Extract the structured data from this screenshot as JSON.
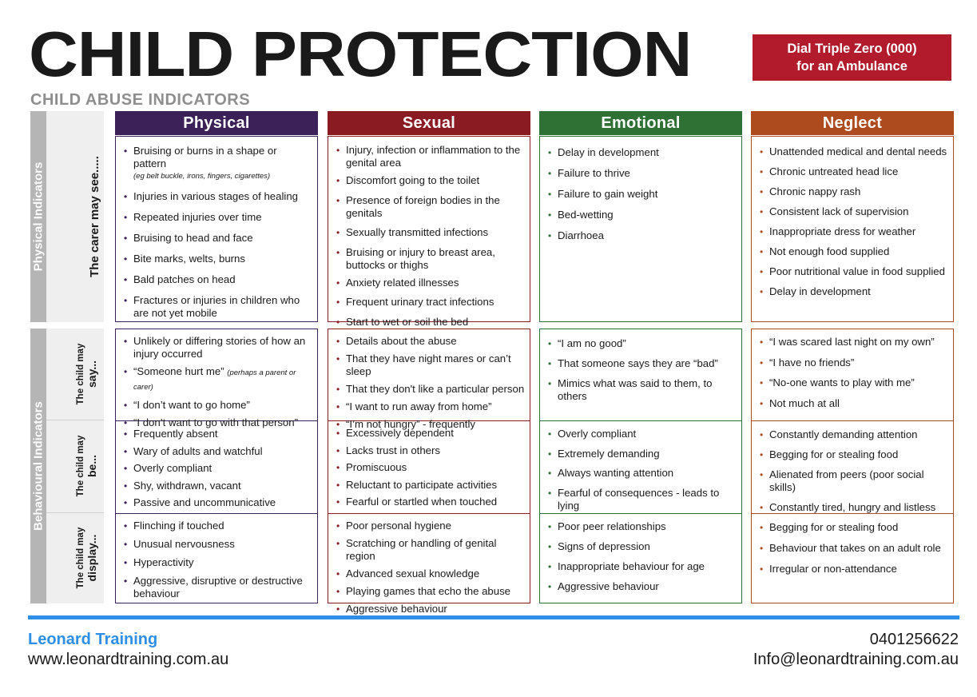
{
  "header": {
    "title": "CHILD PROTECTION",
    "subtitle": "CHILD ABUSE INDICATORS",
    "emergency_line1": "Dial Triple Zero (000)",
    "emergency_line2": "for an Ambulance"
  },
  "sidebar": {
    "physical_group": "Physical Indicators",
    "physical_sub": "The carer may see.....",
    "behavioural_group": "Behavioural Indicators",
    "say_line1": "The child may",
    "say_line2": "say...",
    "be_line1": "The child may",
    "be_line2": "be...",
    "display_line1": "The child may",
    "display_line2": "display..."
  },
  "columns": [
    {
      "heading": "Physical",
      "color": "#3b2157",
      "physical": [
        {
          "text": "Bruising or burns in a shape or pattern",
          "note": "(eg belt buckle, irons, fingers, cigarettes)"
        },
        {
          "text": "Injuries in various stages of healing"
        },
        {
          "text": "Repeated injuries over time"
        },
        {
          "text": "Bruising to head and face"
        },
        {
          "text": "Bite marks, welts, burns"
        },
        {
          "text": "Bald patches on head"
        },
        {
          "text": "Fractures or injuries in children who are not yet mobile"
        }
      ],
      "say": [
        {
          "text": "Unlikely or differing stories of how an injury occurred"
        },
        {
          "text": "“Someone hurt me”",
          "note": "(perhaps a parent or carer)"
        },
        {
          "text": "“I don’t want to go home”"
        },
        {
          "text": "“I don’t want to go with that person”"
        }
      ],
      "be": [
        {
          "text": "Frequently absent"
        },
        {
          "text": "Wary of adults and watchful"
        },
        {
          "text": "Overly compliant"
        },
        {
          "text": "Shy, withdrawn, vacant"
        },
        {
          "text": "Passive and uncommunicative"
        }
      ],
      "display": [
        {
          "text": "Flinching if touched"
        },
        {
          "text": "Unusual nervousness"
        },
        {
          "text": "Hyperactivity"
        },
        {
          "text": "Aggressive,  disruptive or destructive behaviour"
        }
      ]
    },
    {
      "heading": "Sexual",
      "color": "#8b1b22",
      "physical": [
        {
          "text": "Injury, infection or inflammation to the genital area"
        },
        {
          "text": "Discomfort going to the toilet"
        },
        {
          "text": "Presence of foreign bodies in the genitals"
        },
        {
          "text": "Sexually transmitted infections"
        },
        {
          "text": "Bruising or injury to breast area, buttocks  or thighs"
        },
        {
          "text": "Anxiety related illnesses"
        },
        {
          "text": "Frequent urinary tract infections"
        },
        {
          "text": "Start to wet or soil the bed"
        }
      ],
      "say": [
        {
          "text": "Details about the abuse"
        },
        {
          "text": "That they have night mares or can’t sleep"
        },
        {
          "text": "That they don't like a particular person"
        },
        {
          "text": "“I want to run away from home”"
        },
        {
          "text": "“I’m not hungry” - frequently"
        }
      ],
      "be": [
        {
          "text": "Excessively dependent"
        },
        {
          "text": "Lacks trust in others"
        },
        {
          "text": "Promiscuous"
        },
        {
          "text": "Reluctant to participate activities"
        },
        {
          "text": "Fearful or startled when touched"
        }
      ],
      "display": [
        {
          "text": "Poor personal hygiene"
        },
        {
          "text": "Scratching or handling of genital region"
        },
        {
          "text": "Advanced sexual knowledge"
        },
        {
          "text": "Playing games that echo the abuse"
        },
        {
          "text": "Aggressive behaviour"
        }
      ]
    },
    {
      "heading": "Emotional",
      "color": "#2f7034",
      "physical": [
        {
          "text": "Delay in development"
        },
        {
          "text": "Failure to thrive"
        },
        {
          "text": "Failure to gain weight"
        },
        {
          "text": "Bed-wetting"
        },
        {
          "text": "Diarrhoea"
        }
      ],
      "say": [
        {
          "text": "“I am no good”"
        },
        {
          "text": " That someone says they are “bad”"
        },
        {
          "text": " Mimics what was said to them, to others"
        }
      ],
      "be": [
        {
          "text": "Overly compliant"
        },
        {
          "text": "Extremely demanding"
        },
        {
          "text": "Always wanting attention"
        },
        {
          "text": "Fearful of consequences - leads to lying"
        }
      ],
      "display": [
        {
          "text": "Poor peer relationships"
        },
        {
          "text": "Signs of depression"
        },
        {
          "text": "Inappropriate behaviour for age"
        },
        {
          "text": "Aggressive behaviour"
        }
      ]
    },
    {
      "heading": "Neglect",
      "color": "#ae4b1e",
      "physical": [
        {
          "text": "Unattended medical and dental needs"
        },
        {
          "text": "Chronic untreated head lice"
        },
        {
          "text": "Chronic nappy rash"
        },
        {
          "text": "Consistent lack of supervision"
        },
        {
          "text": "Inappropriate dress for weather"
        },
        {
          "text": "Not enough food supplied"
        },
        {
          "text": "Poor nutritional value in food supplied"
        },
        {
          "text": "Delay in development"
        }
      ],
      "say": [
        {
          "text": "“I was scared last night on my own”"
        },
        {
          "text": "“I have no friends”"
        },
        {
          "text": "“No-one wants to play with me”"
        },
        {
          "text": " Not much at all"
        }
      ],
      "be": [
        {
          "text": "Constantly demanding attention"
        },
        {
          "text": "Begging for or stealing food"
        },
        {
          "text": "Alienated from peers (poor social skills)"
        },
        {
          "text": "Constantly tired, hungry and listless"
        }
      ],
      "display": [
        {
          "text": "Begging for or stealing food"
        },
        {
          "text": "Behaviour that takes on an adult role"
        },
        {
          "text": "Irregular or non-attendance"
        }
      ]
    }
  ],
  "footer": {
    "brand": "Leonard Training",
    "website": "www.leonardtraining.com.au",
    "phone": "0401256622",
    "email": "Info@leonardtraining.com.au"
  }
}
